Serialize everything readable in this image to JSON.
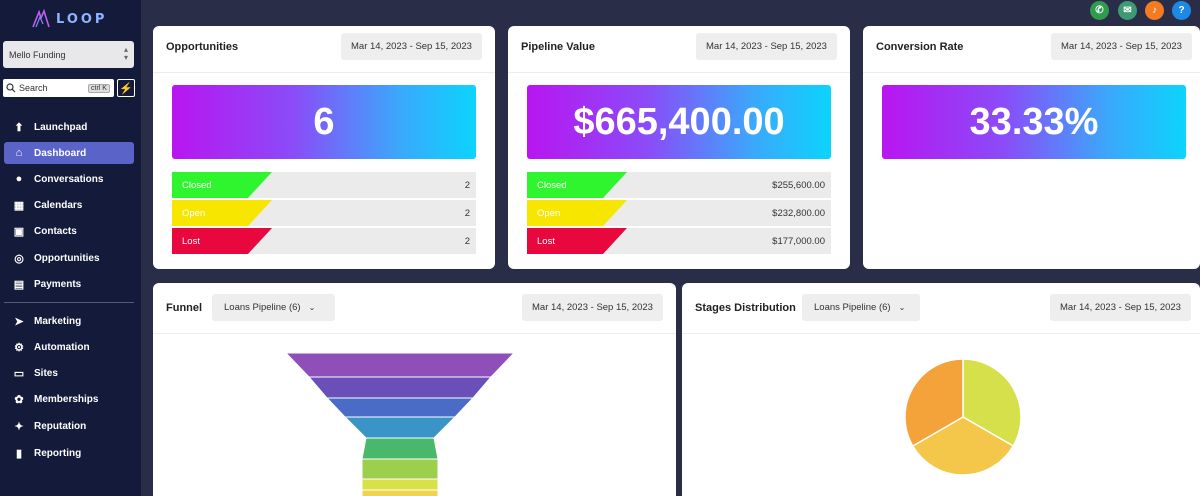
{
  "app": {
    "logo_text": "LOOP"
  },
  "sidebar": {
    "account": "Mello Funding",
    "search_placeholder": "Search",
    "search_shortcut": "ctrl K",
    "items": [
      {
        "label": "Launchpad",
        "icon": "rocket-icon"
      },
      {
        "label": "Dashboard",
        "icon": "home-icon",
        "active": true
      },
      {
        "label": "Conversations",
        "icon": "chat-icon"
      },
      {
        "label": "Calendars",
        "icon": "calendar-icon"
      },
      {
        "label": "Contacts",
        "icon": "contact-icon"
      },
      {
        "label": "Opportunities",
        "icon": "target-icon"
      },
      {
        "label": "Payments",
        "icon": "payment-icon"
      },
      {
        "label": "Marketing",
        "icon": "send-icon"
      },
      {
        "label": "Automation",
        "icon": "automation-icon"
      },
      {
        "label": "Sites",
        "icon": "sites-icon"
      },
      {
        "label": "Memberships",
        "icon": "membership-icon"
      },
      {
        "label": "Reputation",
        "icon": "reputation-icon"
      },
      {
        "label": "Reporting",
        "icon": "chart-icon"
      }
    ]
  },
  "topbar": {
    "icons": [
      {
        "name": "phone-icon",
        "color": "#2e9b4e"
      },
      {
        "name": "megaphone-icon",
        "color": "#3d9a72"
      },
      {
        "name": "bell-icon",
        "color": "#f47b20"
      },
      {
        "name": "help-icon",
        "color": "#1e88e5"
      }
    ]
  },
  "cards": {
    "opportunities": {
      "title": "Opportunities",
      "date": "Mar 14, 2023 - Sep 15, 2023",
      "value": "6",
      "rows": [
        {
          "label": "Closed",
          "value": "2",
          "color": "#2ff52f"
        },
        {
          "label": "Open",
          "value": "2",
          "color": "#f7e600"
        },
        {
          "label": "Lost",
          "value": "2",
          "color": "#e8083e"
        }
      ]
    },
    "pipeline": {
      "title": "Pipeline Value",
      "date": "Mar 14, 2023 - Sep 15, 2023",
      "value": "$665,400.00",
      "rows": [
        {
          "label": "Closed",
          "value": "$255,600.00",
          "color": "#2ff52f"
        },
        {
          "label": "Open",
          "value": "$232,800.00",
          "color": "#f7e600"
        },
        {
          "label": "Lost",
          "value": "$177,000.00",
          "color": "#e8083e"
        }
      ]
    },
    "conversion": {
      "title": "Conversion Rate",
      "date": "Mar 14, 2023 - Sep 15, 2023",
      "value": "33.33%"
    },
    "funnel": {
      "title": "Funnel",
      "dropdown": "Loans Pipeline (6)",
      "date": "Mar 14, 2023 - Sep 15, 2023"
    },
    "stages": {
      "title": "Stages Distribution",
      "dropdown": "Loans Pipeline (6)",
      "date": "Mar 14, 2023 - Sep 15, 2023"
    }
  },
  "chart_data": [
    {
      "type": "funnel",
      "colors": [
        "#8e4fb8",
        "#6a4fb8",
        "#4a6bc6",
        "#3a94c8",
        "#49b86a",
        "#9ccf4e",
        "#d8e04a",
        "#f0d54a",
        "#f2b84a"
      ]
    },
    {
      "type": "pie",
      "slices": [
        {
          "value": 33.33,
          "color": "#d6e04a"
        },
        {
          "value": 33.33,
          "color": "#f4c64a"
        },
        {
          "value": 33.34,
          "color": "#f4a23a"
        }
      ]
    }
  ]
}
